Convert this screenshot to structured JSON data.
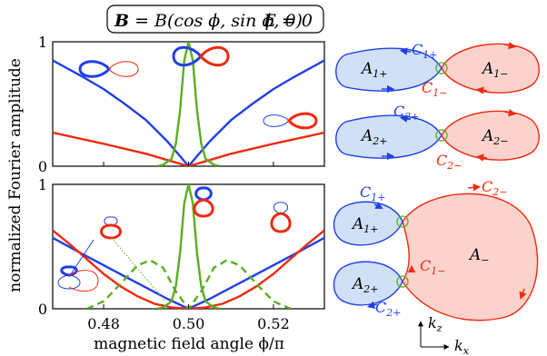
{
  "header": {
    "bold_label": "B",
    "formula_rest": " = B(cos ϕ, sin ϕ, 0)",
    "energy": "E = 0"
  },
  "colors": {
    "blue": "#1f3fe6",
    "red": "#ee2a10",
    "green": "#5aae1f",
    "blue_fill": "#cfe0f7",
    "red_fill": "#fbd2cc"
  },
  "chart_data": [
    {
      "type": "line",
      "panel": "top",
      "xlabel": "",
      "ylabel": "normalized Fourier amplitude",
      "xlim": [
        0.468,
        0.532
      ],
      "ylim": [
        0,
        1
      ],
      "yticks": [
        "0",
        "1"
      ],
      "xticks": [],
      "grid": false,
      "series": [
        {
          "color": "blue",
          "style": "solid",
          "x": [
            0.468,
            0.475,
            0.48,
            0.485,
            0.49,
            0.495,
            0.498,
            0.5,
            0.502,
            0.505,
            0.51,
            0.515,
            0.52,
            0.525,
            0.532
          ],
          "y": [
            0.85,
            0.72,
            0.62,
            0.5,
            0.37,
            0.2,
            0.08,
            0.0,
            0.08,
            0.2,
            0.37,
            0.5,
            0.62,
            0.72,
            0.85
          ]
        },
        {
          "color": "red",
          "style": "solid",
          "x": [
            0.468,
            0.48,
            0.49,
            0.495,
            0.5,
            0.505,
            0.51,
            0.52,
            0.532
          ],
          "y": [
            0.27,
            0.18,
            0.1,
            0.05,
            0.0,
            0.05,
            0.1,
            0.18,
            0.27
          ]
        },
        {
          "color": "green",
          "style": "solid",
          "x": [
            0.4925,
            0.494,
            0.496,
            0.497,
            0.498,
            0.499,
            0.5,
            0.501,
            0.502,
            0.503,
            0.504,
            0.506,
            0.5075
          ],
          "y": [
            0.0,
            0.01,
            0.06,
            0.18,
            0.45,
            0.85,
            1.0,
            0.85,
            0.45,
            0.18,
            0.06,
            0.01,
            0.0
          ]
        }
      ]
    },
    {
      "type": "line",
      "panel": "bottom",
      "xlabel": "magnetic field angle ϕ/π",
      "ylabel": "normalized Fourier amplitude",
      "xlim": [
        0.468,
        0.532
      ],
      "ylim": [
        0,
        1
      ],
      "yticks": [
        "0",
        "1"
      ],
      "xticks": [
        "0.48",
        "0.50",
        "0.52"
      ],
      "grid": false,
      "series": [
        {
          "color": "blue",
          "style": "solid",
          "x": [
            0.468,
            0.475,
            0.48,
            0.485,
            0.49,
            0.495,
            0.5,
            0.505,
            0.51,
            0.515,
            0.52,
            0.525,
            0.532
          ],
          "y": [
            0.57,
            0.44,
            0.35,
            0.26,
            0.17,
            0.08,
            0.0,
            0.08,
            0.17,
            0.26,
            0.35,
            0.44,
            0.57
          ]
        },
        {
          "color": "red",
          "style": "solid",
          "x": [
            0.468,
            0.472,
            0.476,
            0.48,
            0.484,
            0.488,
            0.492,
            0.496,
            0.5,
            0.504,
            0.508,
            0.512,
            0.516,
            0.52,
            0.524,
            0.528,
            0.532
          ],
          "y": [
            0.63,
            0.52,
            0.4,
            0.28,
            0.18,
            0.1,
            0.04,
            0.01,
            0.0,
            0.01,
            0.04,
            0.1,
            0.18,
            0.28,
            0.4,
            0.52,
            0.63
          ]
        },
        {
          "color": "green",
          "style": "solid",
          "x": [
            0.4925,
            0.494,
            0.496,
            0.497,
            0.498,
            0.499,
            0.5,
            0.501,
            0.502,
            0.503,
            0.504,
            0.506,
            0.5075
          ],
          "y": [
            0.0,
            0.01,
            0.06,
            0.18,
            0.45,
            0.85,
            1.0,
            0.85,
            0.45,
            0.18,
            0.06,
            0.01,
            0.0
          ]
        },
        {
          "color": "green",
          "style": "dashed",
          "x": [
            0.476,
            0.48,
            0.484,
            0.488,
            0.491,
            0.494,
            0.497,
            0.5,
            0.503,
            0.506,
            0.509,
            0.512,
            0.516,
            0.52,
            0.524
          ],
          "y": [
            0.0,
            0.06,
            0.2,
            0.35,
            0.39,
            0.33,
            0.14,
            0.0,
            0.14,
            0.33,
            0.39,
            0.35,
            0.2,
            0.06,
            0.0
          ]
        }
      ]
    }
  ],
  "orbit_labels": {
    "A1p": "A",
    "A1p_sub": "1+",
    "A1m": "A",
    "A1m_sub": "1−",
    "C1p": "C",
    "C1p_sub": "1+",
    "C1m": "C",
    "C1m_sub": "1−",
    "A2p": "A",
    "A2p_sub": "2+",
    "A2m": "A",
    "A2m_sub": "2−",
    "C2p": "C",
    "C2p_sub": "2+",
    "C2m": "C",
    "C2m_sub": "2−",
    "b_C1p": "C",
    "b_C1p_sub": "1+",
    "b_A1p": "A",
    "b_A1p_sub": "1+",
    "b_C2m": "C",
    "b_C2m_sub": "2−",
    "b_Am": "A",
    "b_Am_sub": "−",
    "b_C1m": "C",
    "b_C1m_sub": "1−",
    "b_A2p": "A",
    "b_A2p_sub": "2+",
    "b_C2p": "C",
    "b_C2p_sub": "2+"
  },
  "axes_legend": {
    "kz": "k",
    "kz_sub": "z",
    "kx": "k",
    "kx_sub": "x"
  }
}
